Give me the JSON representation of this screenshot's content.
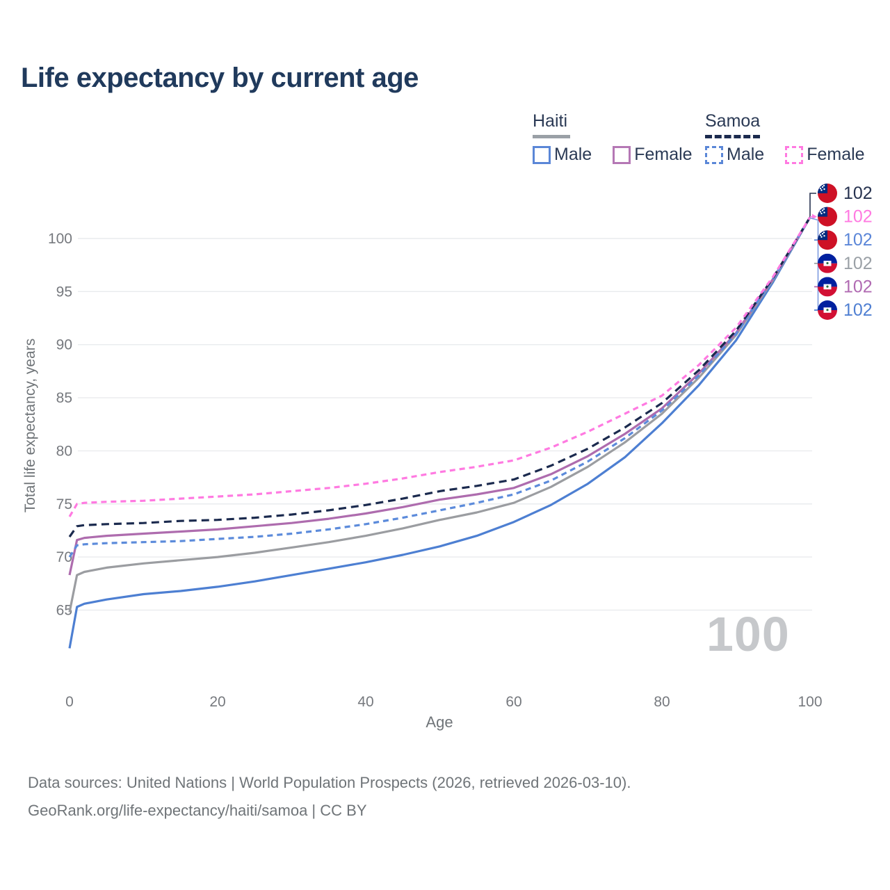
{
  "title": "Life expectancy by current age",
  "legend": {
    "groups": [
      {
        "name": "Haiti",
        "line_style": "solid",
        "line_color": "#9aa0a6",
        "items": [
          {
            "label": "Male",
            "color": "#5b87d7",
            "style": "solid"
          },
          {
            "label": "Female",
            "color": "#b578b5",
            "style": "solid"
          }
        ]
      },
      {
        "name": "Samoa",
        "line_style": "dashed",
        "line_color": "#1b2a4e",
        "items": [
          {
            "label": "Male",
            "color": "#5b87d7",
            "style": "dashed"
          },
          {
            "label": "Female",
            "color": "#ff7ae1",
            "style": "dashed"
          }
        ]
      }
    ]
  },
  "chart_data": {
    "type": "line",
    "title": "Life expectancy by current age",
    "xlabel": "Age",
    "ylabel": "Total life expectancy, years",
    "xlim": [
      0,
      100
    ],
    "ylim": [
      61,
      103
    ],
    "xticks": [
      0,
      20,
      40,
      60,
      80,
      100
    ],
    "yticks": [
      65,
      70,
      75,
      80,
      85,
      90,
      95,
      100
    ],
    "grid": true,
    "hover_age_watermark": "100",
    "series": [
      {
        "name": "Haiti Male",
        "country": "Haiti",
        "gender": "Male",
        "color": "#4d7fd2",
        "dash": "solid",
        "points": [
          [
            0,
            61.4
          ],
          [
            1,
            65.3
          ],
          [
            2,
            65.6
          ],
          [
            5,
            66.0
          ],
          [
            10,
            66.5
          ],
          [
            15,
            66.8
          ],
          [
            20,
            67.2
          ],
          [
            25,
            67.7
          ],
          [
            30,
            68.3
          ],
          [
            35,
            68.9
          ],
          [
            40,
            69.5
          ],
          [
            45,
            70.2
          ],
          [
            50,
            71.0
          ],
          [
            55,
            72.0
          ],
          [
            60,
            73.3
          ],
          [
            65,
            74.9
          ],
          [
            70,
            76.9
          ],
          [
            75,
            79.4
          ],
          [
            80,
            82.6
          ],
          [
            85,
            86.2
          ],
          [
            90,
            90.4
          ],
          [
            95,
            95.9
          ],
          [
            100,
            102
          ]
        ]
      },
      {
        "name": "Haiti Both sexes",
        "country": "Haiti",
        "gender": "Both",
        "color": "#9b9da1",
        "dash": "solid",
        "points": [
          [
            0,
            64.8
          ],
          [
            1,
            68.3
          ],
          [
            2,
            68.6
          ],
          [
            5,
            69.0
          ],
          [
            10,
            69.4
          ],
          [
            15,
            69.7
          ],
          [
            20,
            70.0
          ],
          [
            25,
            70.4
          ],
          [
            30,
            70.9
          ],
          [
            35,
            71.4
          ],
          [
            40,
            72.0
          ],
          [
            45,
            72.7
          ],
          [
            50,
            73.5
          ],
          [
            55,
            74.2
          ],
          [
            60,
            75.1
          ],
          [
            65,
            76.6
          ],
          [
            70,
            78.5
          ],
          [
            75,
            80.8
          ],
          [
            80,
            83.5
          ],
          [
            85,
            86.9
          ],
          [
            90,
            90.9
          ],
          [
            95,
            96.1
          ],
          [
            100,
            102
          ]
        ]
      },
      {
        "name": "Haiti Female",
        "country": "Haiti",
        "gender": "Female",
        "color": "#ae6cae",
        "dash": "solid",
        "points": [
          [
            0,
            68.3
          ],
          [
            1,
            71.6
          ],
          [
            2,
            71.8
          ],
          [
            5,
            72.0
          ],
          [
            10,
            72.2
          ],
          [
            15,
            72.4
          ],
          [
            20,
            72.6
          ],
          [
            25,
            72.9
          ],
          [
            30,
            73.2
          ],
          [
            35,
            73.6
          ],
          [
            40,
            74.1
          ],
          [
            45,
            74.7
          ],
          [
            50,
            75.4
          ],
          [
            55,
            75.9
          ],
          [
            60,
            76.5
          ],
          [
            65,
            77.8
          ],
          [
            70,
            79.5
          ],
          [
            75,
            81.6
          ],
          [
            80,
            84.0
          ],
          [
            85,
            87.3
          ],
          [
            90,
            91.1
          ],
          [
            95,
            96.2
          ],
          [
            100,
            102
          ]
        ]
      },
      {
        "name": "Samoa Male",
        "country": "Samoa",
        "gender": "Male",
        "color": "#5c8bdb",
        "dash": "dashed",
        "points": [
          [
            0,
            70.0
          ],
          [
            1,
            71.1
          ],
          [
            2,
            71.2
          ],
          [
            5,
            71.3
          ],
          [
            10,
            71.4
          ],
          [
            15,
            71.5
          ],
          [
            20,
            71.7
          ],
          [
            25,
            71.9
          ],
          [
            30,
            72.2
          ],
          [
            35,
            72.6
          ],
          [
            40,
            73.1
          ],
          [
            45,
            73.7
          ],
          [
            50,
            74.4
          ],
          [
            55,
            75.1
          ],
          [
            60,
            75.9
          ],
          [
            65,
            77.2
          ],
          [
            70,
            79.0
          ],
          [
            75,
            81.2
          ],
          [
            80,
            83.8
          ],
          [
            85,
            87.1
          ],
          [
            90,
            91.0
          ],
          [
            95,
            96.2
          ],
          [
            100,
            102
          ]
        ]
      },
      {
        "name": "Samoa Both sexes",
        "country": "Samoa",
        "gender": "Both",
        "color": "#1b2a4e",
        "dash": "dashed",
        "points": [
          [
            0,
            71.9
          ],
          [
            1,
            72.9
          ],
          [
            2,
            73.0
          ],
          [
            5,
            73.1
          ],
          [
            10,
            73.2
          ],
          [
            15,
            73.4
          ],
          [
            20,
            73.5
          ],
          [
            25,
            73.7
          ],
          [
            30,
            74.0
          ],
          [
            35,
            74.4
          ],
          [
            40,
            74.9
          ],
          [
            45,
            75.5
          ],
          [
            50,
            76.2
          ],
          [
            55,
            76.7
          ],
          [
            60,
            77.3
          ],
          [
            65,
            78.6
          ],
          [
            70,
            80.2
          ],
          [
            75,
            82.2
          ],
          [
            80,
            84.5
          ],
          [
            85,
            87.6
          ],
          [
            90,
            91.3
          ],
          [
            95,
            96.3
          ],
          [
            100,
            102
          ]
        ]
      },
      {
        "name": "Samoa Female",
        "country": "Samoa",
        "gender": "Female",
        "color": "#ff7ae1",
        "dash": "dashed",
        "points": [
          [
            0,
            73.8
          ],
          [
            1,
            75.0
          ],
          [
            2,
            75.1
          ],
          [
            5,
            75.2
          ],
          [
            10,
            75.3
          ],
          [
            15,
            75.5
          ],
          [
            20,
            75.7
          ],
          [
            25,
            75.9
          ],
          [
            30,
            76.2
          ],
          [
            35,
            76.5
          ],
          [
            40,
            76.9
          ],
          [
            45,
            77.4
          ],
          [
            50,
            78.0
          ],
          [
            55,
            78.5
          ],
          [
            60,
            79.1
          ],
          [
            65,
            80.3
          ],
          [
            70,
            81.8
          ],
          [
            75,
            83.5
          ],
          [
            80,
            85.2
          ],
          [
            85,
            88.1
          ],
          [
            90,
            91.6
          ],
          [
            95,
            96.4
          ],
          [
            100,
            102
          ]
        ]
      }
    ],
    "end_labels": [
      {
        "country": "Samoa",
        "value": "102",
        "color": "#26324f"
      },
      {
        "country": "Samoa",
        "value": "102",
        "color": "#ff7ae1"
      },
      {
        "country": "Samoa",
        "value": "102",
        "color": "#5b86d8"
      },
      {
        "country": "Haiti",
        "value": "102",
        "color": "#9aa0a6"
      },
      {
        "country": "Haiti",
        "value": "102",
        "color": "#b06ab2"
      },
      {
        "country": "Haiti",
        "value": "102",
        "color": "#4f7fd2"
      }
    ]
  },
  "footer": {
    "line1": "Data sources: United Nations | World Population Prospects (2026, retrieved 2026-03-10).",
    "line2": "GeoRank.org/life-expectancy/haiti/samoa | CC BY"
  }
}
